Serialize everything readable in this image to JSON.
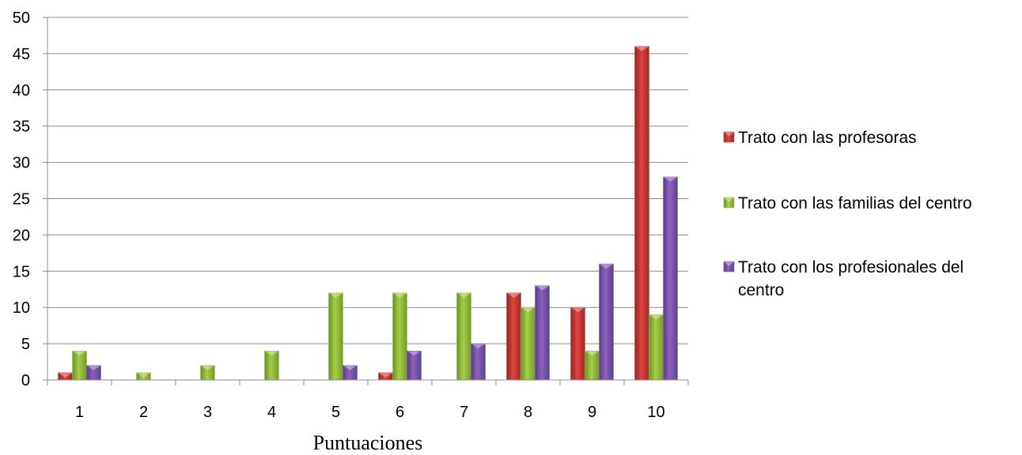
{
  "chart_data": {
    "type": "bar",
    "title": "",
    "xlabel": "Puntuaciones",
    "ylabel": "",
    "ylim": [
      0,
      50
    ],
    "yticks": [
      0,
      5,
      10,
      15,
      20,
      25,
      30,
      35,
      40,
      45,
      50
    ],
    "grid": true,
    "legend_position": "right",
    "categories": [
      "1",
      "2",
      "3",
      "4",
      "5",
      "6",
      "7",
      "8",
      "9",
      "10"
    ],
    "series": [
      {
        "name": "Trato con las profesoras",
        "color": "#c0504d",
        "values": [
          1,
          0,
          0,
          0,
          0,
          1,
          0,
          12,
          10,
          46
        ]
      },
      {
        "name": "Trato con las familias del centro",
        "color": "#9bbb59",
        "values": [
          4,
          1,
          2,
          4,
          12,
          12,
          12,
          10,
          4,
          9
        ]
      },
      {
        "name": "Trato con los profesionales del centro",
        "name_lines": [
          "Trato con los profesionales del",
          "centro"
        ],
        "color": "#8064a2",
        "values": [
          2,
          0,
          0,
          0,
          2,
          4,
          5,
          13,
          16,
          28
        ]
      }
    ]
  }
}
